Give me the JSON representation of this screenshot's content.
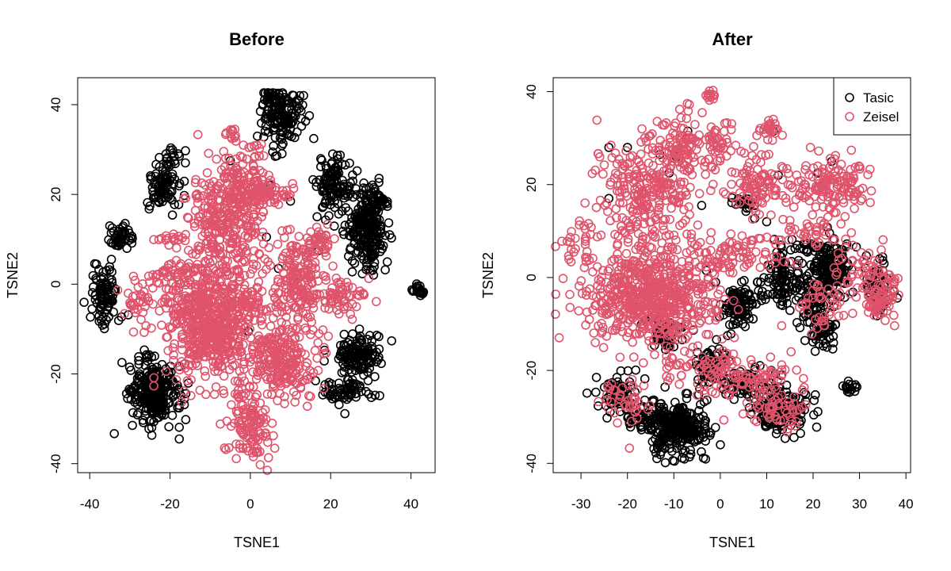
{
  "colors": {
    "tasic": "#000000",
    "zeisel": "#DF536B"
  },
  "legend": {
    "entries": [
      "Tasic",
      "Zeisel"
    ],
    "placement": "top-right",
    "panel": "After"
  },
  "chart_data": [
    {
      "type": "scatter",
      "title": "Before",
      "xlabel": "TSNE1",
      "ylabel": "TSNE2",
      "xlim": [
        -43,
        46
      ],
      "ylim": [
        -42,
        46
      ],
      "xticks": [
        -40,
        -20,
        0,
        20,
        40
      ],
      "yticks": [
        -40,
        -20,
        0,
        20,
        40
      ],
      "grid": false,
      "series": [
        {
          "color": "#000000",
          "clusters": [
            {
              "cx": 8,
              "cy": 37,
              "sx": 2.5,
              "sy": 3,
              "n": 140
            },
            {
              "cx": 5,
              "cy": 41.5,
              "sx": 1.2,
              "sy": 0.8,
              "n": 25
            },
            {
              "cx": -22,
              "cy": 22,
              "sx": 1.8,
              "sy": 3,
              "n": 90
            },
            {
              "cx": -19,
              "cy": 28,
              "sx": 1.5,
              "sy": 1,
              "n": 15
            },
            {
              "cx": -32,
              "cy": 10.5,
              "sx": 1.5,
              "sy": 1.2,
              "n": 50
            },
            {
              "cx": -36,
              "cy": -2,
              "sx": 1.8,
              "sy": 3.5,
              "n": 90
            },
            {
              "cx": 21,
              "cy": 22,
              "sx": 2.2,
              "sy": 3.5,
              "n": 110
            },
            {
              "cx": 29,
              "cy": 12,
              "sx": 2.5,
              "sy": 4.5,
              "n": 220
            },
            {
              "cx": 32,
              "cy": 19,
              "sx": 1.2,
              "sy": 1.5,
              "n": 30
            },
            {
              "cx": 42,
              "cy": -1.5,
              "sx": 0.8,
              "sy": 0.6,
              "n": 20
            },
            {
              "cx": 27,
              "cy": -16,
              "sx": 3,
              "sy": 2.5,
              "n": 130
            },
            {
              "cx": 24,
              "cy": -24,
              "sx": 3,
              "sy": 1.5,
              "n": 60
            },
            {
              "cx": -24,
              "cy": -24,
              "sx": 3.5,
              "sy": 3.8,
              "n": 260
            }
          ],
          "points": [
            [
              -35,
              13
            ],
            [
              -5,
              27.5
            ],
            [
              2.5,
              38.5
            ],
            [
              4,
              10.5
            ],
            [
              7,
              3.5
            ],
            [
              11,
              0.5
            ],
            [
              17,
              7.5
            ],
            [
              20.5,
              29
            ],
            [
              -0.5,
              -10.5
            ],
            [
              10,
              18.5
            ],
            [
              5,
              22
            ]
          ]
        },
        {
          "color": "#DF536B",
          "clusters": [
            {
              "cx": -10,
              "cy": -8,
              "sx": 6,
              "sy": 6,
              "n": 620
            },
            {
              "cx": -6,
              "cy": 14,
              "sx": 4.5,
              "sy": 7,
              "n": 330
            },
            {
              "cx": 3,
              "cy": 20,
              "sx": 4,
              "sy": 2,
              "n": 90
            },
            {
              "cx": -1,
              "cy": 25,
              "sx": 3,
              "sy": 2,
              "n": 40
            },
            {
              "cx": -5,
              "cy": 33,
              "sx": 0.7,
              "sy": 1,
              "n": 12
            },
            {
              "cx": 2,
              "cy": 30,
              "sx": 1.5,
              "sy": 1,
              "n": 10
            },
            {
              "cx": 12,
              "cy": 0,
              "sx": 3.5,
              "sy": 5,
              "n": 170
            },
            {
              "cx": 16,
              "cy": 9,
              "sx": 2.5,
              "sy": 2,
              "n": 40
            },
            {
              "cx": 22,
              "cy": -3,
              "sx": 3.5,
              "sy": 2,
              "n": 60
            },
            {
              "cx": 0,
              "cy": -5,
              "sx": 2,
              "sy": 2,
              "n": 30
            },
            {
              "cx": 8,
              "cy": -17,
              "sx": 4.5,
              "sy": 4,
              "n": 210
            },
            {
              "cx": 0,
              "cy": -31,
              "sx": 2.5,
              "sy": 4,
              "n": 120
            },
            {
              "cx": -20,
              "cy": 2,
              "sx": 3,
              "sy": 2,
              "n": 40
            },
            {
              "cx": -20,
              "cy": 10,
              "sx": 1.5,
              "sy": 1,
              "n": 15
            },
            {
              "cx": -28,
              "cy": -5,
              "sx": 1.5,
              "sy": 3,
              "n": 35
            }
          ],
          "points": []
        }
      ]
    },
    {
      "type": "scatter",
      "title": "After",
      "xlabel": "TSNE1",
      "ylabel": "TSNE2",
      "xlim": [
        -36,
        41
      ],
      "ylim": [
        -42,
        43
      ],
      "xticks": [
        -30,
        -20,
        -10,
        0,
        10,
        20,
        30,
        40
      ],
      "yticks": [
        -40,
        -20,
        0,
        20,
        40
      ],
      "grid": false,
      "legend": {
        "entries": [
          "Tasic",
          "Zeisel"
        ],
        "placement": "top-right"
      },
      "series": [
        {
          "name": "Tasic",
          "color": "#000000",
          "clusters": [
            {
              "cx": -10,
              "cy": -32,
              "sx": 3.5,
              "sy": 3,
              "n": 300
            },
            {
              "cx": -22,
              "cy": -25,
              "sx": 2,
              "sy": 2.5,
              "n": 70
            },
            {
              "cx": -18,
              "cy": -30,
              "sx": 2,
              "sy": 1.5,
              "n": 25
            },
            {
              "cx": -12,
              "cy": -12,
              "sx": 2,
              "sy": 1.5,
              "n": 50
            },
            {
              "cx": 4,
              "cy": -6,
              "sx": 2,
              "sy": 2.5,
              "n": 100
            },
            {
              "cx": -2,
              "cy": -19,
              "sx": 2,
              "sy": 2,
              "n": 60
            },
            {
              "cx": 3,
              "cy": -23,
              "sx": 2,
              "sy": 1.5,
              "n": 30
            },
            {
              "cx": 13,
              "cy": -28,
              "sx": 3,
              "sy": 2.5,
              "n": 160
            },
            {
              "cx": 13,
              "cy": 0,
              "sx": 2,
              "sy": 3,
              "n": 90
            },
            {
              "cx": 20,
              "cy": -5,
              "sx": 2,
              "sy": 3,
              "n": 80
            },
            {
              "cx": 22,
              "cy": -12,
              "sx": 1.5,
              "sy": 2,
              "n": 50
            },
            {
              "cx": 24,
              "cy": 2,
              "sx": 2.5,
              "sy": 3,
              "n": 150
            },
            {
              "cx": 34,
              "cy": -2,
              "sx": 1.5,
              "sy": 2.5,
              "n": 60
            },
            {
              "cx": 28,
              "cy": -23.5,
              "sx": 0.8,
              "sy": 0.8,
              "n": 15
            },
            {
              "cx": 5,
              "cy": 16,
              "sx": 1.5,
              "sy": 1,
              "n": 20
            },
            {
              "cx": 19,
              "cy": 7,
              "sx": 1.5,
              "sy": 1,
              "n": 15
            },
            {
              "cx": 7,
              "cy": -23,
              "sx": 2,
              "sy": 1.5,
              "n": 30
            }
          ],
          "points": [
            [
              -24,
              28
            ],
            [
              -20,
              28
            ],
            [
              -13,
              26.5
            ],
            [
              -11,
              22.5
            ],
            [
              -9.5,
              26
            ],
            [
              -7,
              31.5
            ],
            [
              -4,
              15.5
            ],
            [
              11.5,
              31.5
            ],
            [
              12.5,
              22
            ],
            [
              24,
              25
            ],
            [
              21,
              22.5
            ],
            [
              10,
              12
            ],
            [
              -3,
              1.5
            ],
            [
              -1,
              -1
            ],
            [
              8,
              -1
            ],
            [
              11,
              -20
            ],
            [
              -24,
              17
            ]
          ]
        },
        {
          "name": "Zeisel",
          "color": "#DF536B",
          "clusters": [
            {
              "cx": -15,
              "cy": -4,
              "sx": 7,
              "sy": 5,
              "n": 600
            },
            {
              "cx": -16,
              "cy": 18,
              "sx": 5,
              "sy": 6,
              "n": 280
            },
            {
              "cx": -8,
              "cy": 28,
              "sx": 3,
              "sy": 4,
              "n": 90
            },
            {
              "cx": -30,
              "cy": 8,
              "sx": 2,
              "sy": 3,
              "n": 30
            },
            {
              "cx": -2,
              "cy": 39,
              "sx": 0.8,
              "sy": 0.6,
              "n": 12
            },
            {
              "cx": 0,
              "cy": 29,
              "sx": 1.5,
              "sy": 2,
              "n": 40
            },
            {
              "cx": 8,
              "cy": 20,
              "sx": 4,
              "sy": 3,
              "n": 100
            },
            {
              "cx": 11,
              "cy": 32,
              "sx": 2,
              "sy": 1,
              "n": 25
            },
            {
              "cx": 24,
              "cy": 20,
              "sx": 4,
              "sy": 3,
              "n": 140
            },
            {
              "cx": 3,
              "cy": 5,
              "sx": 5,
              "sy": 2,
              "n": 80
            },
            {
              "cx": 18,
              "cy": 9,
              "sx": 4,
              "sy": 2,
              "n": 40
            },
            {
              "cx": 34,
              "cy": -4,
              "sx": 2,
              "sy": 3,
              "n": 80
            },
            {
              "cx": 0,
              "cy": -20,
              "sx": 3,
              "sy": 3,
              "n": 70
            },
            {
              "cx": 10,
              "cy": -21,
              "sx": 3,
              "sy": 2,
              "n": 40
            },
            {
              "cx": -20,
              "cy": -26,
              "sx": 2.5,
              "sy": 3,
              "n": 40
            },
            {
              "cx": 12,
              "cy": -28,
              "sx": 3,
              "sy": 2.5,
              "n": 60
            },
            {
              "cx": -9,
              "cy": -18,
              "sx": 2,
              "sy": 2,
              "n": 20
            },
            {
              "cx": 22,
              "cy": -6,
              "sx": 3,
              "sy": 3,
              "n": 40
            },
            {
              "cx": 30,
              "cy": 2,
              "sx": 3,
              "sy": 3,
              "n": 40
            }
          ],
          "points": []
        }
      ]
    }
  ]
}
